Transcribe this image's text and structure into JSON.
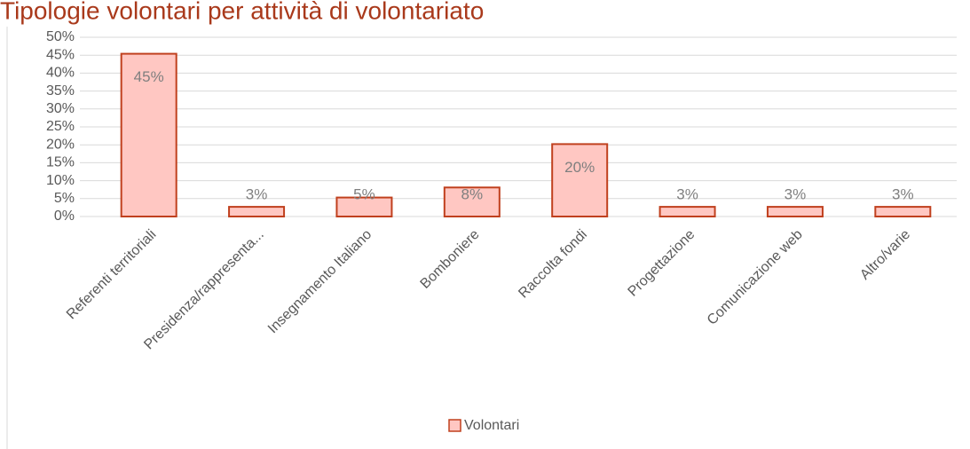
{
  "chart_data": {
    "type": "bar",
    "title": "Tipologie volontari per attività di volontariato",
    "categories": [
      "Referenti territoriali",
      "Presidenza/rappresenta...",
      "Insegnamento Italiano",
      "Bomboniere",
      "Raccolta fondi",
      "Progettazione",
      "Comunicazione web",
      "Altro/varie"
    ],
    "series": [
      {
        "name": "Volontari",
        "color": "#ffc7c2",
        "values": [
          45.4,
          2.7,
          5.3,
          8.1,
          20.2,
          2.7,
          2.7,
          2.7
        ],
        "value_labels": [
          "45%",
          "3%",
          "5%",
          "8%",
          "20%",
          "3%",
          "3%",
          "3%"
        ]
      }
    ],
    "ylim": [
      0,
      50
    ],
    "yticks": [
      {
        "value": 0,
        "label": "0%"
      },
      {
        "value": 5,
        "label": "5%"
      },
      {
        "value": 10,
        "label": "10%"
      },
      {
        "value": 15,
        "label": "15%"
      },
      {
        "value": 20,
        "label": "20%"
      },
      {
        "value": 25,
        "label": "25%"
      },
      {
        "value": 30,
        "label": "30%"
      },
      {
        "value": 35,
        "label": "35%"
      },
      {
        "value": 40,
        "label": "40%"
      },
      {
        "value": 45,
        "label": "45%"
      },
      {
        "value": 50,
        "label": "50%"
      }
    ],
    "grid": true,
    "legend": "bottom"
  }
}
